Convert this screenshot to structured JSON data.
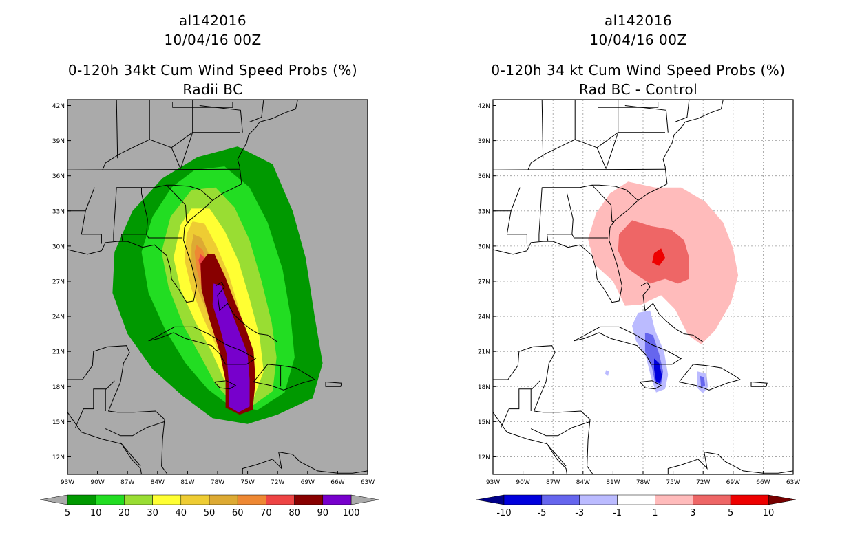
{
  "left": {
    "storm_id": "al142016",
    "datetime": "10/04/16 00Z",
    "title": "0-120h 34kt Cum Wind Speed Probs (%)",
    "subtitle": "Radii BC",
    "background": "#aaaaaa",
    "legend": {
      "labels": [
        "5",
        "10",
        "20",
        "30",
        "40",
        "50",
        "60",
        "70",
        "80",
        "90",
        "100"
      ],
      "colors": [
        "#009900",
        "#22dd22",
        "#99dd33",
        "#ffff33",
        "#eecc33",
        "#ddaa33",
        "#ee8833",
        "#ee4444",
        "#880000",
        "#7700cc"
      ],
      "ends": [
        "#aaaaaa",
        "#aaaaaa"
      ]
    }
  },
  "right": {
    "storm_id": "al142016",
    "datetime": "10/04/16 00Z",
    "title": "0-120h 34 kt Cum Wind Speed Probs (%)",
    "subtitle": "Rad BC - Control",
    "background": "#ffffff",
    "legend": {
      "labels": [
        "-10",
        "-5",
        "-3",
        "-1",
        "1",
        "3",
        "5",
        "10"
      ],
      "colors": [
        "#0000dd",
        "#6666ee",
        "#bbbbff",
        "#ffffff",
        "#ffbbbb",
        "#ee6666",
        "#ee0000"
      ],
      "ends": [
        "#000088",
        "#770000"
      ]
    }
  },
  "axes": {
    "lat_labels": [
      "42N",
      "39N",
      "36N",
      "33N",
      "30N",
      "27N",
      "24N",
      "21N",
      "18N",
      "15N",
      "12N"
    ],
    "lon_labels": [
      "93W",
      "90W",
      "87W",
      "84W",
      "81W",
      "78W",
      "75W",
      "72W",
      "69W",
      "66W",
      "63W"
    ]
  }
}
